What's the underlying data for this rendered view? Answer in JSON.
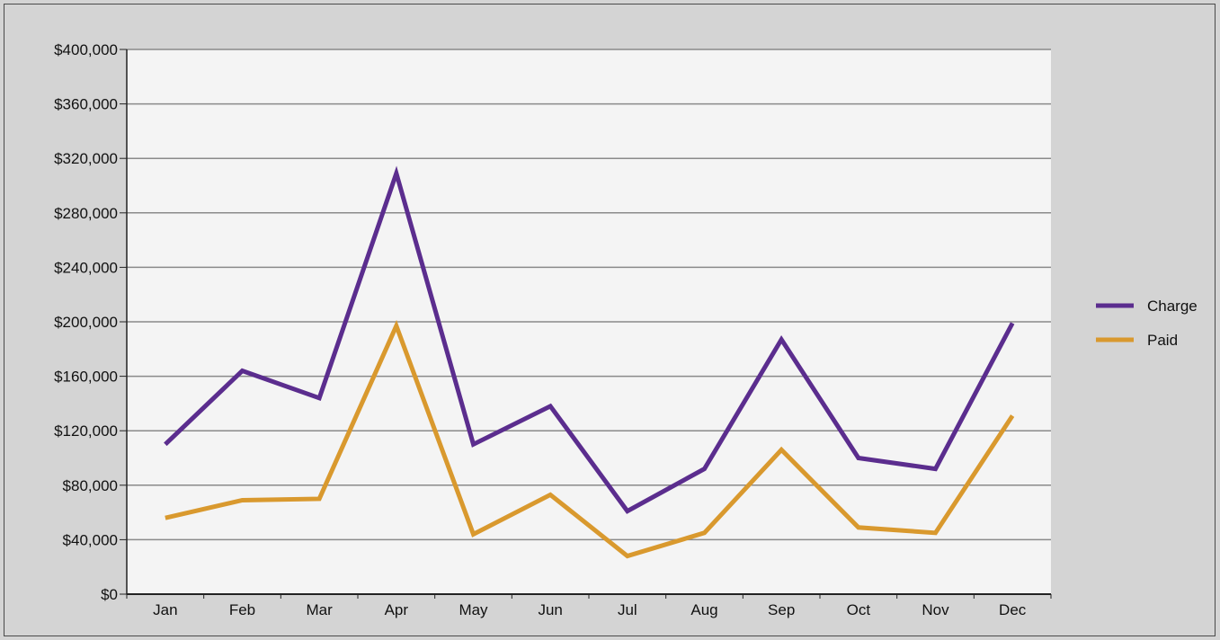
{
  "chart_data": {
    "type": "line",
    "title": "",
    "xlabel": "",
    "ylabel": "",
    "categories": [
      "Jan",
      "Feb",
      "Mar",
      "Apr",
      "May",
      "Jun",
      "Jul",
      "Aug",
      "Sep",
      "Oct",
      "Nov",
      "Dec"
    ],
    "ylim": [
      0,
      400000
    ],
    "yticks": [
      0,
      40000,
      80000,
      120000,
      160000,
      200000,
      240000,
      280000,
      320000,
      360000,
      400000
    ],
    "ytick_labels": [
      "$0",
      "$40,000",
      "$80,000",
      "$120,000",
      "$160,000",
      "$200,000",
      "$240,000",
      "$280,000",
      "$320,000",
      "$360,000",
      "$400,000"
    ],
    "grid": true,
    "legend_position": "right",
    "series": [
      {
        "name": "Charge",
        "color": "#5b2d8e",
        "values": [
          110000,
          164000,
          144000,
          309000,
          110000,
          138000,
          61000,
          92000,
          187000,
          100000,
          92000,
          199000
        ]
      },
      {
        "name": "Paid",
        "color": "#d9992e",
        "values": [
          56000,
          69000,
          70000,
          197000,
          44000,
          73000,
          28000,
          45000,
          106000,
          49000,
          45000,
          131000
        ]
      }
    ],
    "plot_background": "#f4f4f4",
    "page_background": "#d4d4d4"
  }
}
